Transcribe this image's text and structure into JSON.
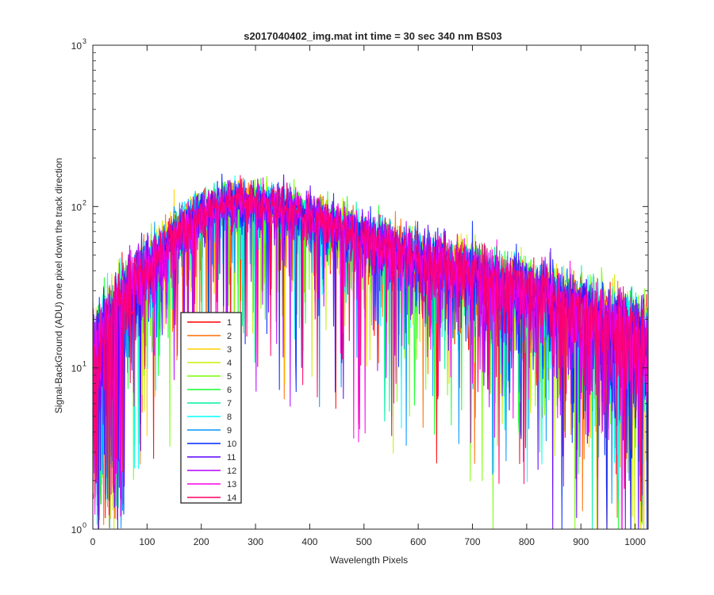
{
  "chart_data": {
    "type": "line",
    "title": "s2017040402_img.mat int time = 30 sec  340 nm BS03",
    "xlabel": "Wavelength Pixels",
    "ylabel": "Signal-BackGround (ADU) one pixel down the track direction",
    "xlim": [
      0,
      1024
    ],
    "ylim": [
      1,
      1000
    ],
    "yscale": "log",
    "x_ticks": [
      0,
      100,
      200,
      300,
      400,
      500,
      600,
      700,
      800,
      900,
      1000
    ],
    "y_ticks": [
      {
        "base": "10",
        "exp": "0"
      },
      {
        "base": "10",
        "exp": "1"
      },
      {
        "base": "10",
        "exp": "2"
      },
      {
        "base": "10",
        "exp": "3"
      }
    ],
    "grid": false,
    "legend_position": "left",
    "envelope": {
      "x": [
        0,
        50,
        100,
        150,
        200,
        250,
        300,
        350,
        400,
        450,
        500,
        550,
        600,
        650,
        700,
        750,
        800,
        850,
        900,
        950,
        1000,
        1023
      ],
      "y": [
        12,
        25,
        42,
        65,
        92,
        108,
        105,
        98,
        88,
        76,
        64,
        54,
        47,
        42,
        38,
        33,
        29,
        25,
        21,
        18,
        15,
        13
      ]
    },
    "series": [
      {
        "name": "1",
        "color": "#ff0000"
      },
      {
        "name": "2",
        "color": "#ff6e00"
      },
      {
        "name": "3",
        "color": "#ffd200"
      },
      {
        "name": "4",
        "color": "#c8f000"
      },
      {
        "name": "5",
        "color": "#78ff00"
      },
      {
        "name": "6",
        "color": "#14ff28"
      },
      {
        "name": "7",
        "color": "#00f0a0"
      },
      {
        "name": "8",
        "color": "#00ffff"
      },
      {
        "name": "9",
        "color": "#0096ff"
      },
      {
        "name": "10",
        "color": "#0028ff"
      },
      {
        "name": "11",
        "color": "#5a00ff"
      },
      {
        "name": "12",
        "color": "#b400ff"
      },
      {
        "name": "13",
        "color": "#ff00e6"
      },
      {
        "name": "14",
        "color": "#ff0064"
      }
    ]
  }
}
